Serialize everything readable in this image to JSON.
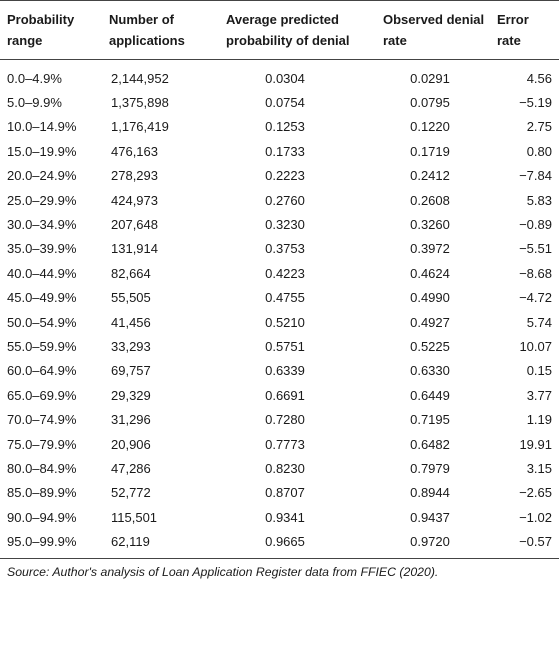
{
  "table": {
    "headers": [
      "Probability range",
      "Number of applications",
      "Average predicted probability of denial",
      "Observed denial rate",
      "Error rate"
    ],
    "rows": [
      [
        "0.0–4.9%",
        "2,144,952",
        "0.0304",
        "0.0291",
        "4.56"
      ],
      [
        "5.0–9.9%",
        "1,375,898",
        "0.0754",
        "0.0795",
        "−5.19"
      ],
      [
        "10.0–14.9%",
        "1,176,419",
        "0.1253",
        "0.1220",
        "2.75"
      ],
      [
        "15.0–19.9%",
        "476,163",
        "0.1733",
        "0.1719",
        "0.80"
      ],
      [
        "20.0–24.9%",
        "278,293",
        "0.2223",
        "0.2412",
        "−7.84"
      ],
      [
        "25.0–29.9%",
        "424,973",
        "0.2760",
        "0.2608",
        "5.83"
      ],
      [
        "30.0–34.9%",
        "207,648",
        "0.3230",
        "0.3260",
        "−0.89"
      ],
      [
        "35.0–39.9%",
        "131,914",
        "0.3753",
        "0.3972",
        "−5.51"
      ],
      [
        "40.0–44.9%",
        "82,664",
        "0.4223",
        "0.4624",
        "−8.68"
      ],
      [
        "45.0–49.9%",
        "55,505",
        "0.4755",
        "0.4990",
        "−4.72"
      ],
      [
        "50.0–54.9%",
        "41,456",
        "0.5210",
        "0.4927",
        "5.74"
      ],
      [
        "55.0–59.9%",
        "33,293",
        "0.5751",
        "0.5225",
        "10.07"
      ],
      [
        "60.0–64.9%",
        "69,757",
        "0.6339",
        "0.6330",
        "0.15"
      ],
      [
        "65.0–69.9%",
        "29,329",
        "0.6691",
        "0.6449",
        "3.77"
      ],
      [
        "70.0–74.9%",
        "31,296",
        "0.7280",
        "0.7195",
        "1.19"
      ],
      [
        "75.0–79.9%",
        "20,906",
        "0.7773",
        "0.6482",
        "19.91"
      ],
      [
        "80.0–84.9%",
        "47,286",
        "0.8230",
        "0.7979",
        "3.15"
      ],
      [
        "85.0–89.9%",
        "52,772",
        "0.8707",
        "0.8944",
        "−2.65"
      ],
      [
        "90.0–94.9%",
        "115,501",
        "0.9341",
        "0.9437",
        "−1.02"
      ],
      [
        "95.0–99.9%",
        "62,119",
        "0.9665",
        "0.9720",
        "−0.57"
      ]
    ]
  },
  "note": "Source: Author's analysis of Loan Application Register data from FFIEC (2020)."
}
